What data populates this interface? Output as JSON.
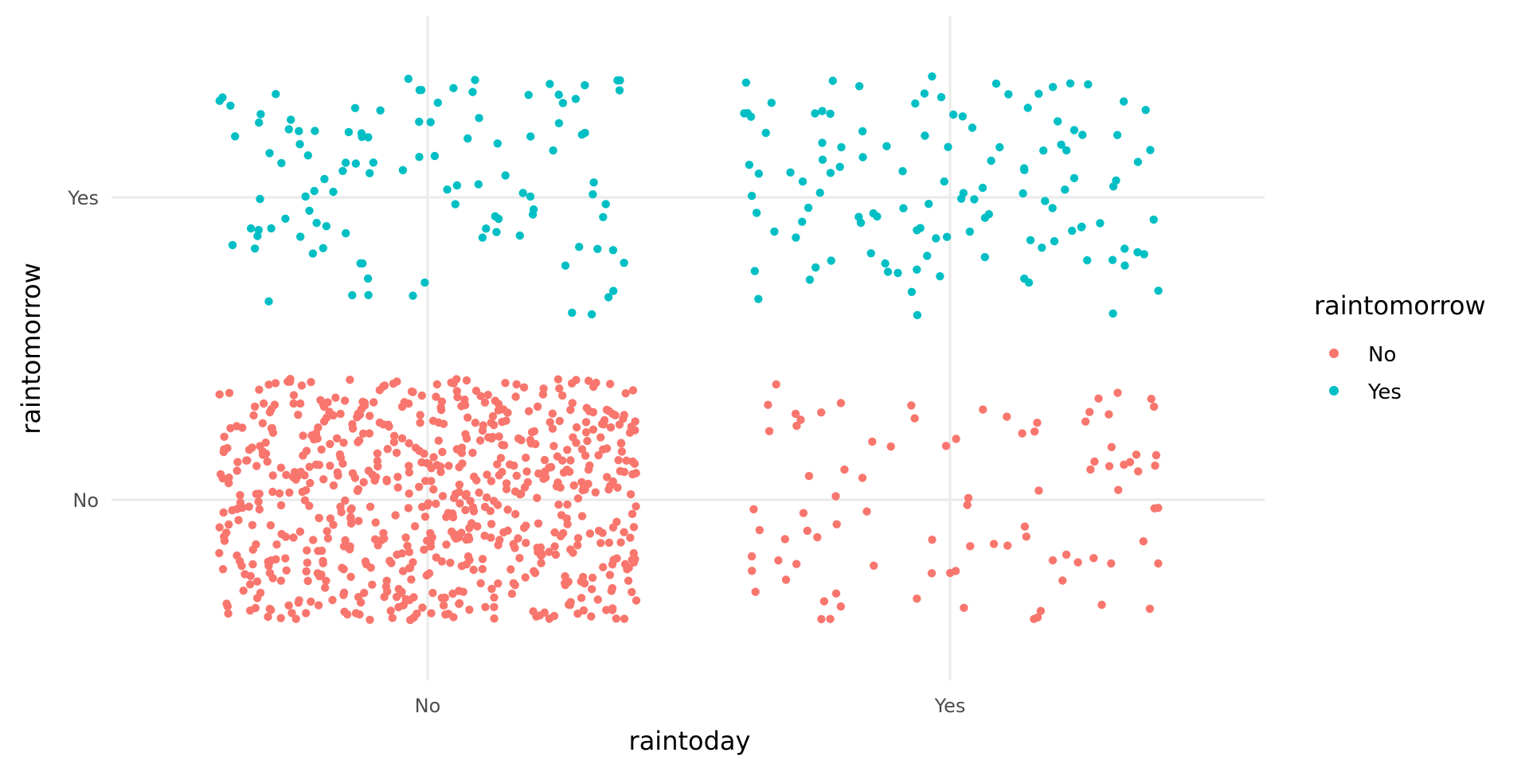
{
  "chart_data": {
    "type": "scatter",
    "jitter": true,
    "xlabel": "raintoday",
    "ylabel": "raintomorrow",
    "categories_x": [
      "No",
      "Yes"
    ],
    "categories_y": [
      "No",
      "Yes"
    ],
    "grid": true,
    "legend": {
      "title": "raintomorrow",
      "placement": "right",
      "entries": [
        {
          "label": "No",
          "color": "#F8766D"
        },
        {
          "label": "Yes",
          "color": "#00BFC4"
        }
      ]
    },
    "groups": [
      {
        "raintoday": "No",
        "raintomorrow": "No",
        "approx_count": 700,
        "color": "#F8766D"
      },
      {
        "raintoday": "No",
        "raintomorrow": "Yes",
        "approx_count": 110,
        "color": "#00BFC4"
      },
      {
        "raintoday": "Yes",
        "raintomorrow": "No",
        "approx_count": 90,
        "color": "#F8766D"
      },
      {
        "raintoday": "Yes",
        "raintomorrow": "Yes",
        "approx_count": 120,
        "color": "#00BFC4"
      }
    ],
    "jitter_width": 0.4,
    "jitter_height": 0.4
  }
}
